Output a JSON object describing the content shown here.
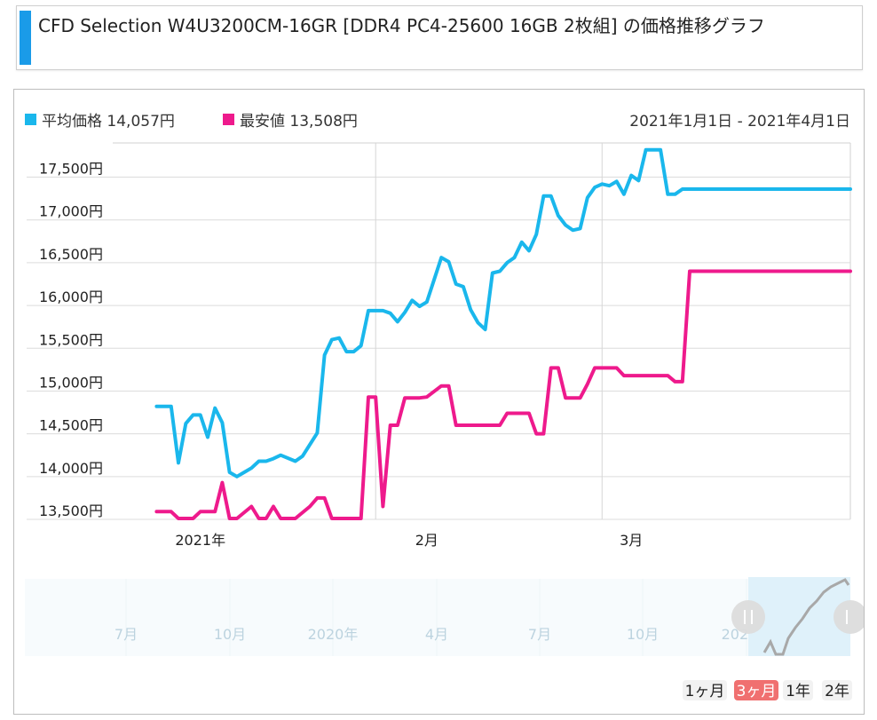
{
  "title": "CFD Selection W4U3200CM-16GR [DDR4 PC4-25600 16GB 2枚組] の価格推移グラフ",
  "colors": {
    "accent": "#1a9be8",
    "avg": "#1ab7ec",
    "min": "#ee1a8c",
    "active_range": "#f07070"
  },
  "legend": {
    "avg_label": "平均価格 14,057円",
    "min_label": "最安値 13,508円",
    "date_range": "2021年1月1日 - 2021年4月1日"
  },
  "navigator": {
    "labels": [
      "7月",
      "10月",
      "2020年",
      "4月",
      "7月",
      "10月",
      "2021年"
    ]
  },
  "range_buttons": [
    {
      "label": "1ヶ月",
      "active": false
    },
    {
      "label": "3ヶ月",
      "active": true
    },
    {
      "label": "1年",
      "active": false
    },
    {
      "label": "2年",
      "active": false
    }
  ],
  "chart_data": {
    "type": "line",
    "title": "",
    "ylim": [
      13500,
      17900
    ],
    "yticks": [
      13500,
      14000,
      14500,
      15000,
      15500,
      16000,
      16500,
      17000,
      17500
    ],
    "ytick_labels": [
      "13,500円",
      "14,000円",
      "14,500円",
      "15,000円",
      "15,500円",
      "16,000円",
      "16,500円",
      "17,000円",
      "17,500円"
    ],
    "x_start": "2020-12-20",
    "xlim": [
      "2020-12-20",
      "2021-03-31"
    ],
    "xticks": [
      {
        "date": "2021-01-01",
        "label": "2021年"
      },
      {
        "date": "2021-02-01",
        "label": "2月"
      },
      {
        "date": "2021-03-01",
        "label": "3月"
      }
    ],
    "gridlines_x": [
      "2021-01-25",
      "2021-02-25"
    ],
    "grid": true,
    "legend_position": "top-left",
    "series": [
      {
        "name": "平均価格",
        "x": [
          "2020-12-26",
          "2020-12-28",
          "2020-12-29",
          "2020-12-30",
          "2020-12-31",
          "2021-01-01",
          "2021-01-02",
          "2021-01-03",
          "2021-01-04",
          "2021-01-05",
          "2021-01-06",
          "2021-01-07",
          "2021-01-08",
          "2021-01-09",
          "2021-01-10",
          "2021-01-11",
          "2021-01-12",
          "2021-01-14",
          "2021-01-15",
          "2021-01-17",
          "2021-01-18",
          "2021-01-19",
          "2021-01-20",
          "2021-01-21",
          "2021-01-22",
          "2021-01-23",
          "2021-01-24",
          "2021-01-25",
          "2021-01-26",
          "2021-01-27",
          "2021-01-28",
          "2021-01-29",
          "2021-01-30",
          "2021-01-31",
          "2021-02-01",
          "2021-02-02",
          "2021-02-03",
          "2021-02-04",
          "2021-02-05",
          "2021-02-06",
          "2021-02-07",
          "2021-02-08",
          "2021-02-09",
          "2021-02-10",
          "2021-02-11",
          "2021-02-12",
          "2021-02-13",
          "2021-02-14",
          "2021-02-15",
          "2021-02-16",
          "2021-02-17",
          "2021-02-18",
          "2021-02-19",
          "2021-02-20",
          "2021-02-21",
          "2021-02-22",
          "2021-02-23",
          "2021-02-24",
          "2021-02-25",
          "2021-02-26",
          "2021-02-27",
          "2021-02-28",
          "2021-03-01",
          "2021-03-02",
          "2021-03-03",
          "2021-03-04",
          "2021-03-05",
          "2021-03-06",
          "2021-03-07",
          "2021-03-08",
          "2021-03-09",
          "2021-03-10",
          "2021-03-11",
          "2021-03-12",
          "2021-03-13",
          "2021-03-14",
          "2021-03-15",
          "2021-03-16",
          "2021-03-17",
          "2021-03-18",
          "2021-03-19",
          "2021-03-20",
          "2021-03-21",
          "2021-03-22",
          "2021-03-23",
          "2021-03-24",
          "2021-03-25",
          "2021-03-26",
          "2021-03-27",
          "2021-03-29",
          "2021-03-31"
        ],
        "y": [
          14820,
          14820,
          14160,
          14620,
          14720,
          14720,
          14460,
          14800,
          14630,
          14050,
          14000,
          14050,
          14100,
          14180,
          14180,
          14210,
          14250,
          14180,
          14240,
          14510,
          15420,
          15600,
          15620,
          15460,
          15460,
          15530,
          15940,
          15940,
          15940,
          15910,
          15810,
          15920,
          16060,
          15990,
          16040,
          16300,
          16560,
          16510,
          16250,
          16220,
          15950,
          15800,
          15720,
          16380,
          16400,
          16500,
          16560,
          16740,
          16640,
          16830,
          17280,
          17280,
          17050,
          16940,
          16880,
          16900,
          17260,
          17380,
          17420,
          17400,
          17450,
          17300,
          17520,
          17460,
          17820,
          17820,
          17820,
          17300,
          17300,
          17360,
          17360,
          17360,
          17360,
          17360,
          17360,
          17360,
          17360,
          17360,
          17360,
          17360,
          17360,
          17360,
          17360,
          17360,
          17360,
          17360,
          17360,
          17360,
          17360,
          17360,
          17360
        ]
      },
      {
        "name": "最安値",
        "x": [
          "2020-12-26",
          "2020-12-28",
          "2020-12-29",
          "2020-12-31",
          "2021-01-01",
          "2021-01-03",
          "2021-01-04",
          "2021-01-05",
          "2021-01-06",
          "2021-01-08",
          "2021-01-09",
          "2021-01-10",
          "2021-01-11",
          "2021-01-12",
          "2021-01-13",
          "2021-01-14",
          "2021-01-16",
          "2021-01-17",
          "2021-01-18",
          "2021-01-19",
          "2021-01-20",
          "2021-01-22",
          "2021-01-23",
          "2021-01-24",
          "2021-01-25",
          "2021-01-26",
          "2021-01-27",
          "2021-01-28",
          "2021-01-29",
          "2021-01-30",
          "2021-01-31",
          "2021-02-01",
          "2021-02-03",
          "2021-02-04",
          "2021-02-05",
          "2021-02-06",
          "2021-02-08",
          "2021-02-09",
          "2021-02-10",
          "2021-02-11",
          "2021-02-12",
          "2021-02-13",
          "2021-02-14",
          "2021-02-15",
          "2021-02-16",
          "2021-02-17",
          "2021-02-18",
          "2021-02-19",
          "2021-02-20",
          "2021-02-21",
          "2021-02-22",
          "2021-02-23",
          "2021-02-24",
          "2021-02-25",
          "2021-02-26",
          "2021-02-27",
          "2021-02-28",
          "2021-03-01",
          "2021-03-02",
          "2021-03-03",
          "2021-03-04",
          "2021-03-05",
          "2021-03-06",
          "2021-03-07",
          "2021-03-08",
          "2021-03-09",
          "2021-03-10",
          "2021-03-11",
          "2021-03-12",
          "2021-03-13",
          "2021-03-14",
          "2021-03-15",
          "2021-03-16",
          "2021-03-17",
          "2021-03-18",
          "2021-03-19",
          "2021-03-20",
          "2021-03-21",
          "2021-03-22",
          "2021-03-23",
          "2021-03-24",
          "2021-03-25",
          "2021-03-26",
          "2021-03-27",
          "2021-03-28",
          "2021-03-29",
          "2021-03-31"
        ],
        "y": [
          13590,
          13590,
          13510,
          13510,
          13590,
          13590,
          13930,
          13510,
          13510,
          13650,
          13510,
          13510,
          13650,
          13510,
          13510,
          13510,
          13650,
          13750,
          13750,
          13510,
          13510,
          13510,
          13510,
          14930,
          14930,
          13650,
          14600,
          14600,
          14920,
          14920,
          14920,
          14930,
          15060,
          15060,
          14600,
          14600,
          14600,
          14600,
          14600,
          14600,
          14740,
          14740,
          14740,
          14740,
          14500,
          14500,
          15270,
          15270,
          14920,
          14920,
          14920,
          15080,
          15270,
          15270,
          15270,
          15270,
          15180,
          15180,
          15180,
          15180,
          15180,
          15180,
          15180,
          15110,
          15110,
          16400,
          16400,
          16400,
          16400,
          16400,
          16400,
          16400,
          16400,
          16400,
          16400,
          16400,
          16400,
          16400,
          16400,
          16400,
          16400,
          16400,
          16400,
          16400,
          16400,
          16400,
          16400
        ]
      }
    ]
  }
}
